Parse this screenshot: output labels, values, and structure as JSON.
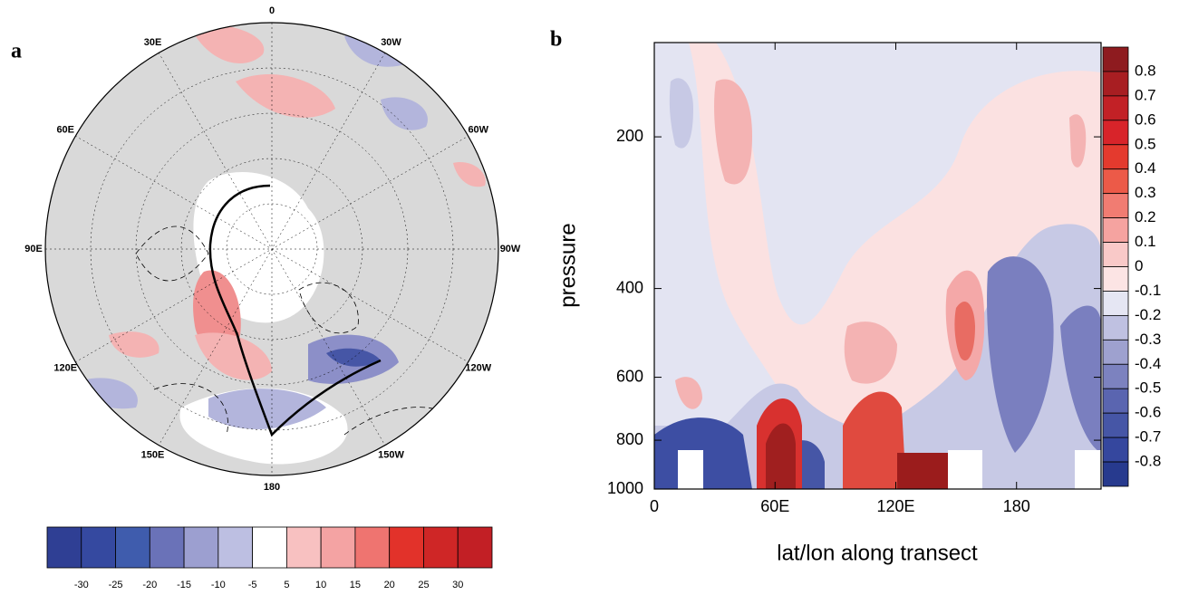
{
  "panel_a": {
    "label": "a",
    "meridian_labels": [
      "0",
      "30W",
      "60W",
      "90W",
      "120W",
      "150W",
      "180",
      "150E",
      "120E",
      "90E",
      "60E",
      "30E"
    ],
    "colorbar": {
      "colors": [
        "#2f3f94",
        "#3549a0",
        "#3f5cad",
        "#6a72b8",
        "#9c9fd0",
        "#bdbfe2",
        "#ffffff",
        "#f8c1c1",
        "#f4a3a3",
        "#ef7470",
        "#e2322a",
        "#cf2626",
        "#c21f25"
      ],
      "labels": [
        -30,
        -25,
        -20,
        -15,
        -10,
        -5,
        5,
        10,
        15,
        20,
        25,
        30
      ]
    }
  },
  "panel_b": {
    "label": "b",
    "x_label": "lat/lon along transect",
    "y_label": "pressure",
    "xlim": [
      0,
      222
    ],
    "ylim": [
      1000,
      130
    ],
    "y_scale": "log",
    "xticks": [
      0,
      {
        "value": 60,
        "label": "60E"
      },
      {
        "value": 120,
        "label": "120E"
      },
      180
    ],
    "yticks": [
      200,
      400,
      600,
      800,
      1000
    ],
    "colorbar": {
      "colors": [
        "#8e1b1f",
        "#a81e22",
        "#c22126",
        "#d8242a",
        "#e43a2e",
        "#ec5a48",
        "#f17c72",
        "#f5a3a0",
        "#f9c9c8",
        "#fce4e4",
        "#e5e6f3",
        "#bfc1e1",
        "#9ea1cf",
        "#7c82bf",
        "#5a65b0",
        "#4656a6",
        "#35479e",
        "#273a8e"
      ],
      "labels": [
        0.8,
        0.7,
        0.6,
        0.5,
        0.4,
        0.3,
        0.2,
        0.1,
        0,
        -0.1,
        -0.2,
        -0.3,
        -0.4,
        -0.5,
        -0.6,
        -0.7,
        -0.8
      ]
    }
  }
}
